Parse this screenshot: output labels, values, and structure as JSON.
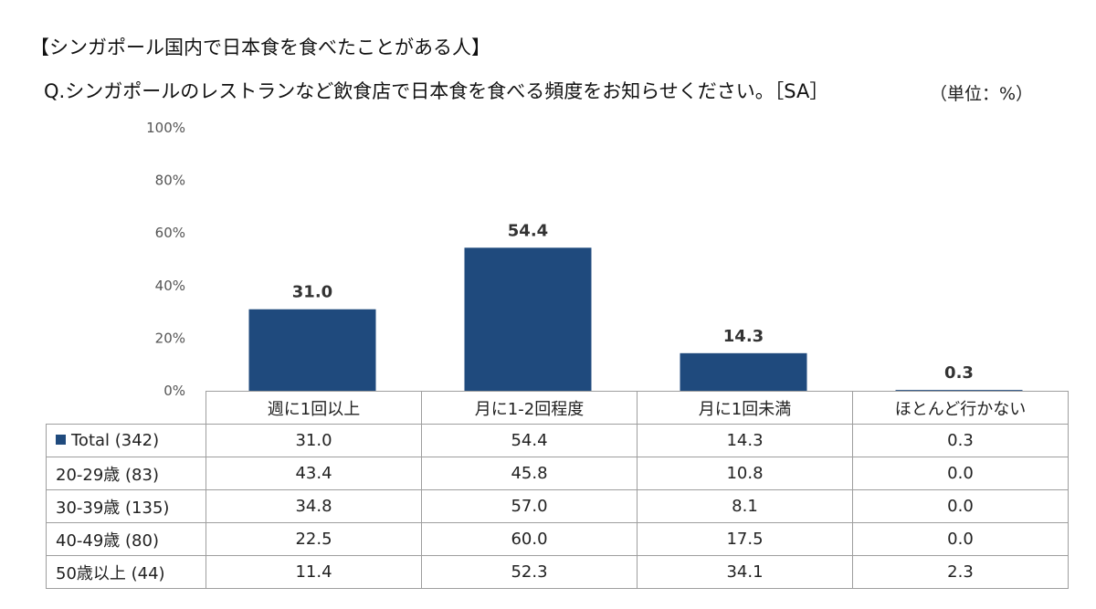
{
  "title": "【シンガポール国内で日本食を食べたことがある人】",
  "question": "Q.シンガポールのレストランなど飲食店で日本食を食べる頻度をお知らせください。［SA］",
  "unit": "（単位：%）",
  "colors": {
    "bar": "#1f4a7d",
    "grid_border": "#9e9e9e"
  },
  "chart_data": {
    "type": "bar",
    "categories": [
      "週に1回以上",
      "月に1-2回程度",
      "月に1回未満",
      "ほとんど行かない"
    ],
    "series": [
      {
        "name": "Total (342)",
        "values": [
          31.0,
          54.4,
          14.3,
          0.3
        ]
      }
    ],
    "ylim": [
      0,
      100
    ],
    "yticks": [
      "0%",
      "20%",
      "40%",
      "60%",
      "80%",
      "100%"
    ],
    "data_labels": [
      "31.0",
      "54.4",
      "14.3",
      "0.3"
    ],
    "grid": false,
    "legend": "table-left"
  },
  "table": {
    "headers": [
      "週に1回以上",
      "月に1-2回程度",
      "月に1回未満",
      "ほとんど行かない"
    ],
    "rows": [
      {
        "label": "Total (342)",
        "values": [
          "31.0",
          "54.4",
          "14.3",
          "0.3"
        ]
      },
      {
        "label": "20-29歳 (83)",
        "values": [
          "43.4",
          "45.8",
          "10.8",
          "0.0"
        ]
      },
      {
        "label": "30-39歳 (135)",
        "values": [
          "34.8",
          "57.0",
          "8.1",
          "0.0"
        ]
      },
      {
        "label": "40-49歳 (80)",
        "values": [
          "22.5",
          "60.0",
          "17.5",
          "0.0"
        ]
      },
      {
        "label": "50歳以上 (44)",
        "values": [
          "11.4",
          "52.3",
          "34.1",
          "2.3"
        ]
      }
    ]
  }
}
